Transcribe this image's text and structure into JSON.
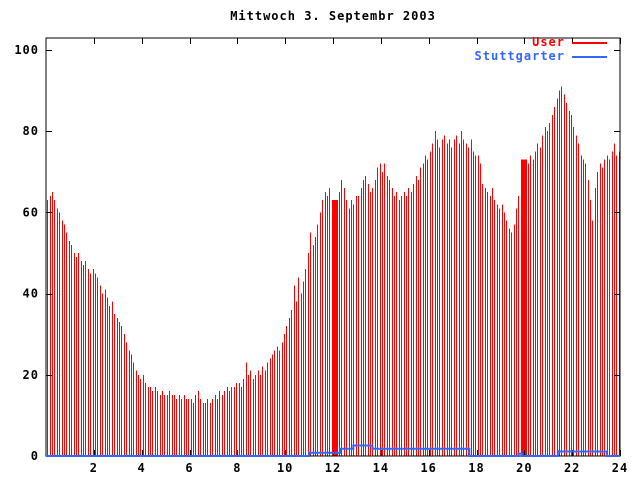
{
  "chart_data": {
    "type": "bar",
    "title": "Mittwoch 3. Septembr 2003",
    "xlabel": "",
    "ylabel": "",
    "grid": false,
    "legend_position": "top-right-inside",
    "x": {
      "min": 0,
      "max": 24,
      "ticks": [
        2,
        4,
        6,
        8,
        10,
        12,
        14,
        16,
        18,
        20,
        22,
        24
      ],
      "start_hour": 0.05,
      "interval_hours": 0.1
    },
    "y": {
      "min": 0,
      "max": 103,
      "ticks": [
        0,
        20,
        40,
        60,
        80,
        100
      ]
    },
    "series": [
      {
        "name": "User",
        "style": "impulses",
        "color": "#ff0000",
        "values": [
          63,
          64,
          65,
          63,
          61,
          60,
          58,
          57,
          55,
          53,
          52,
          50,
          49,
          50,
          48,
          47,
          48,
          46,
          45,
          46,
          45,
          44,
          42,
          40,
          41,
          39,
          37,
          38,
          35,
          34,
          33,
          32,
          30,
          28,
          26,
          25,
          23,
          21,
          20,
          19,
          20,
          18,
          17,
          17,
          16,
          17,
          16,
          15,
          16,
          15,
          15,
          16,
          15,
          15,
          14,
          15,
          14,
          15,
          14,
          14,
          14,
          13,
          15,
          16,
          14,
          13,
          13,
          14,
          13,
          14,
          15,
          14,
          16,
          15,
          16,
          17,
          16,
          17,
          17,
          18,
          18,
          17,
          19,
          23,
          20,
          21,
          19,
          20,
          21,
          20,
          22,
          21,
          23,
          24,
          25,
          26,
          27,
          26,
          28,
          30,
          32,
          34,
          36,
          42,
          38,
          44,
          40,
          43,
          46,
          50,
          55,
          52,
          54,
          57,
          60,
          63,
          65,
          64,
          66,
          63,
          62,
          63,
          65,
          68,
          66,
          63,
          61,
          63,
          62,
          64,
          64,
          66,
          68,
          69,
          67,
          65,
          66,
          68,
          71,
          72,
          70,
          72,
          69,
          68,
          66,
          64,
          65,
          63,
          64,
          65,
          64,
          66,
          65,
          67,
          69,
          68,
          71,
          72,
          74,
          73,
          75,
          77,
          80,
          78,
          76,
          78,
          79,
          77,
          78,
          76,
          78,
          79,
          77,
          80,
          78,
          77,
          76,
          78,
          75,
          74,
          74,
          72,
          67,
          66,
          65,
          64,
          66,
          63,
          62,
          61,
          62,
          60,
          58,
          56,
          55,
          57,
          61,
          64,
          67,
          70,
          73,
          72,
          74,
          73,
          75,
          77,
          76,
          79,
          81,
          80,
          82,
          84,
          86,
          88,
          90,
          91,
          89,
          87,
          85,
          84,
          81,
          79,
          77,
          74,
          73,
          72,
          68,
          63,
          58,
          66,
          70,
          72,
          71,
          73,
          74,
          73,
          75,
          77,
          74,
          75
        ],
        "dense_spans": [
          {
            "from": 11.95,
            "to": 12.18,
            "value": 63
          },
          {
            "from": 19.87,
            "to": 20.12,
            "value": 73
          }
        ]
      },
      {
        "name": "Stuttgarter",
        "style": "steps",
        "color": "#3366ff",
        "segments": [
          {
            "from": 0,
            "to": 11.0,
            "value": 0
          },
          {
            "from": 11.0,
            "to": 12.3,
            "value": 0.8
          },
          {
            "from": 12.3,
            "to": 12.85,
            "value": 1.8
          },
          {
            "from": 12.85,
            "to": 13.65,
            "value": 2.6
          },
          {
            "from": 13.65,
            "to": 17.7,
            "value": 1.8
          },
          {
            "from": 17.7,
            "to": 19.75,
            "value": 0
          },
          {
            "from": 19.75,
            "to": 19.9,
            "value": 0.6
          },
          {
            "from": 19.9,
            "to": 21.4,
            "value": 0
          },
          {
            "from": 21.4,
            "to": 23.45,
            "value": 1.1
          },
          {
            "from": 23.45,
            "to": 24.0,
            "value": 0
          }
        ]
      }
    ]
  },
  "colors": {
    "background": "#ffffff",
    "axis": "#000000",
    "title_text": "#000000",
    "user_red": "#ff0000",
    "stuttgarter_blue": "#3366ff"
  }
}
